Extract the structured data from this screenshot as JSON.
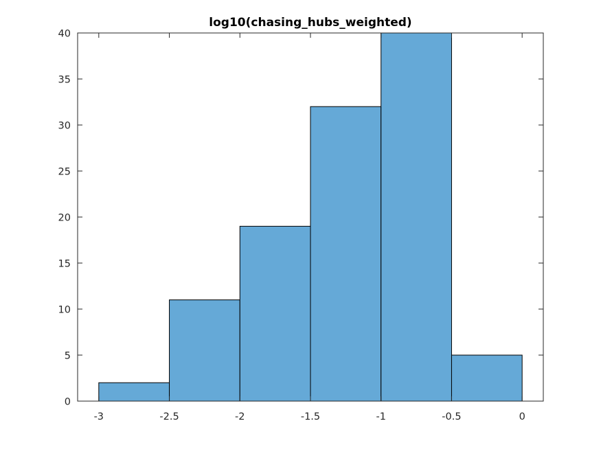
{
  "chart_data": {
    "type": "bar",
    "title": "log10(chasing_hubs_weighted)",
    "xlabel": "",
    "ylabel": "",
    "bin_edges": [
      -3,
      -2.5,
      -2,
      -1.5,
      -1,
      -0.5,
      0
    ],
    "values": [
      2,
      11,
      19,
      32,
      40,
      5
    ],
    "xlim": [
      -3.15,
      0.15
    ],
    "ylim": [
      0,
      40
    ],
    "x_ticks": [
      -3,
      -2.5,
      -2,
      -1.5,
      -1,
      -0.5,
      0
    ],
    "x_tick_labels": [
      "-3",
      "-2.5",
      "-2",
      "-1.5",
      "-1",
      "-0.5",
      "0"
    ],
    "y_ticks": [
      0,
      5,
      10,
      15,
      20,
      25,
      30,
      35,
      40
    ],
    "y_tick_labels": [
      "0",
      "5",
      "10",
      "15",
      "20",
      "25",
      "30",
      "35",
      "40"
    ],
    "bar_color": "#65a9d7",
    "edge_color": "#000000",
    "grid": false,
    "legend": "none"
  }
}
